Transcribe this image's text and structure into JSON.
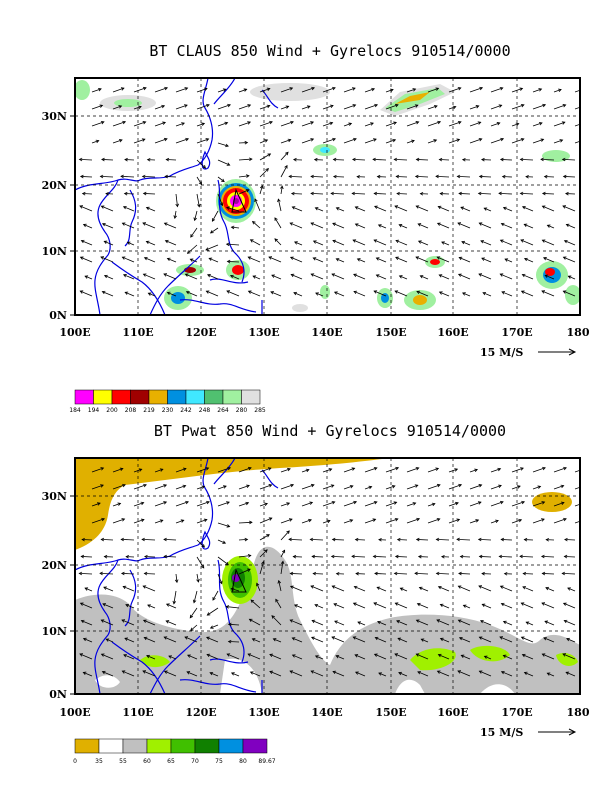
{
  "panels": [
    {
      "id": "claus",
      "title": "BT CLAUS 850 Wind + Gyrelocs 910514/0000",
      "ref_vector_label": "15 M/S",
      "x_ticks": [
        "100E",
        "110E",
        "120E",
        "130E",
        "140E",
        "150E",
        "160E",
        "170E",
        "180"
      ],
      "y_ticks": [
        "0N",
        "10N",
        "20N",
        "30N"
      ],
      "colorbar": {
        "labels": [
          "184",
          "194",
          "200",
          "208",
          "219",
          "230",
          "242",
          "248",
          "264",
          "280",
          "285"
        ],
        "colors": [
          "#ff00ff",
          "#ffff00",
          "#ff0000",
          "#a00000",
          "#e8b000",
          "#0090e0",
          "#40e8ff",
          "#50c070",
          "#a0f0a0",
          "#e0e0e0"
        ]
      }
    },
    {
      "id": "pwat",
      "title": "BT Pwat 850 Wind + Gyrelocs 910514/0000",
      "ref_vector_label": "15 M/S",
      "x_ticks": [
        "100E",
        "110E",
        "120E",
        "130E",
        "140E",
        "150E",
        "160E",
        "170E",
        "180"
      ],
      "y_ticks": [
        "0N",
        "10N",
        "20N",
        "30N"
      ],
      "colorbar": {
        "labels": [
          "0",
          "35",
          "55",
          "60",
          "65",
          "70",
          "75",
          "80",
          "89.67"
        ],
        "colors": [
          "#e0b000",
          "#ffffff",
          "#c0c0c0",
          "#a0f000",
          "#40c000",
          "#108000",
          "#0090e0",
          "#8000c0"
        ]
      }
    }
  ]
}
